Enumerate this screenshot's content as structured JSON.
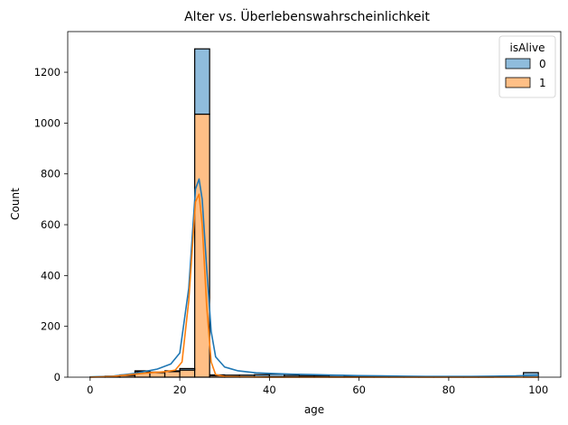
{
  "chart_data": {
    "type": "bar",
    "subtype": "stacked-histogram-with-kde",
    "title": "Alter vs. Überlebenswahrscheinlichkeit",
    "xlabel": "age",
    "ylabel": "Count",
    "xlim": [
      -5,
      105
    ],
    "ylim": [
      0,
      1360
    ],
    "xticks": [
      0,
      20,
      40,
      60,
      80,
      100
    ],
    "yticks": [
      0,
      200,
      400,
      600,
      800,
      1000,
      1200
    ],
    "legend": {
      "title": "isAlive",
      "placement": "top-right"
    },
    "bin_width": 3.33,
    "bins": [
      {
        "x0": 0.0,
        "isAlive_1": 1,
        "isAlive_0": 0
      },
      {
        "x0": 3.33,
        "isAlive_1": 3,
        "isAlive_0": 1
      },
      {
        "x0": 6.67,
        "isAlive_1": 7,
        "isAlive_0": 2
      },
      {
        "x0": 10.0,
        "isAlive_1": 22,
        "isAlive_0": 3
      },
      {
        "x0": 13.33,
        "isAlive_1": 18,
        "isAlive_0": 2
      },
      {
        "x0": 16.67,
        "isAlive_1": 22,
        "isAlive_0": 3
      },
      {
        "x0": 20.0,
        "isAlive_1": 28,
        "isAlive_0": 6
      },
      {
        "x0": 23.33,
        "isAlive_1": 1035,
        "isAlive_0": 257
      },
      {
        "x0": 26.67,
        "isAlive_1": 6,
        "isAlive_0": 3
      },
      {
        "x0": 30.0,
        "isAlive_1": 3,
        "isAlive_0": 5
      },
      {
        "x0": 33.33,
        "isAlive_1": 2,
        "isAlive_0": 6
      },
      {
        "x0": 36.67,
        "isAlive_1": 2,
        "isAlive_0": 8
      },
      {
        "x0": 40.0,
        "isAlive_1": 2,
        "isAlive_0": 10
      },
      {
        "x0": 43.33,
        "isAlive_1": 1,
        "isAlive_0": 6
      },
      {
        "x0": 46.67,
        "isAlive_1": 1,
        "isAlive_0": 5
      },
      {
        "x0": 50.0,
        "isAlive_1": 1,
        "isAlive_0": 5
      },
      {
        "x0": 53.33,
        "isAlive_1": 1,
        "isAlive_0": 6
      },
      {
        "x0": 56.67,
        "isAlive_1": 1,
        "isAlive_0": 3
      },
      {
        "x0": 60.0,
        "isAlive_1": 0,
        "isAlive_0": 3
      },
      {
        "x0": 63.33,
        "isAlive_1": 0,
        "isAlive_0": 4
      },
      {
        "x0": 66.67,
        "isAlive_1": 0,
        "isAlive_0": 2
      },
      {
        "x0": 70.0,
        "isAlive_1": 0,
        "isAlive_0": 2
      },
      {
        "x0": 73.33,
        "isAlive_1": 0,
        "isAlive_0": 1
      },
      {
        "x0": 76.67,
        "isAlive_1": 0,
        "isAlive_0": 1
      },
      {
        "x0": 80.0,
        "isAlive_1": 0,
        "isAlive_0": 1
      },
      {
        "x0": 83.33,
        "isAlive_1": 0,
        "isAlive_0": 1
      },
      {
        "x0": 86.67,
        "isAlive_1": 0,
        "isAlive_0": 1
      },
      {
        "x0": 90.0,
        "isAlive_1": 0,
        "isAlive_0": 0
      },
      {
        "x0": 93.33,
        "isAlive_1": 0,
        "isAlive_0": 0
      },
      {
        "x0": 96.67,
        "isAlive_1": 0,
        "isAlive_0": 18
      }
    ],
    "series": [
      {
        "name": "0",
        "fill": "#8fbcdc",
        "line": "#1f77b4",
        "kde": [
          [
            0,
            1
          ],
          [
            5,
            4
          ],
          [
            10,
            15
          ],
          [
            15,
            32
          ],
          [
            18,
            52
          ],
          [
            20,
            95
          ],
          [
            22,
            350
          ],
          [
            23.5,
            740
          ],
          [
            24.3,
            780
          ],
          [
            25,
            700
          ],
          [
            26,
            430
          ],
          [
            27,
            180
          ],
          [
            28,
            80
          ],
          [
            30,
            40
          ],
          [
            33,
            25
          ],
          [
            37,
            17
          ],
          [
            40,
            15
          ],
          [
            45,
            12
          ],
          [
            50,
            10
          ],
          [
            55,
            8
          ],
          [
            60,
            6
          ],
          [
            65,
            5
          ],
          [
            70,
            4
          ],
          [
            75,
            3
          ],
          [
            80,
            3
          ],
          [
            85,
            3
          ],
          [
            90,
            4
          ],
          [
            95,
            5
          ],
          [
            100,
            8
          ]
        ]
      },
      {
        "name": "1",
        "fill": "#ffbf86",
        "line": "#ff7f0e",
        "kde": [
          [
            0,
            0
          ],
          [
            5,
            3
          ],
          [
            10,
            12
          ],
          [
            13,
            17
          ],
          [
            17,
            22
          ],
          [
            19,
            28
          ],
          [
            20.5,
            60
          ],
          [
            22,
            300
          ],
          [
            23.5,
            690
          ],
          [
            24.3,
            720
          ],
          [
            25,
            600
          ],
          [
            26,
            280
          ],
          [
            27,
            60
          ],
          [
            28,
            10
          ],
          [
            30,
            3
          ],
          [
            35,
            1
          ],
          [
            40,
            0
          ],
          [
            100,
            0
          ]
        ]
      }
    ]
  }
}
